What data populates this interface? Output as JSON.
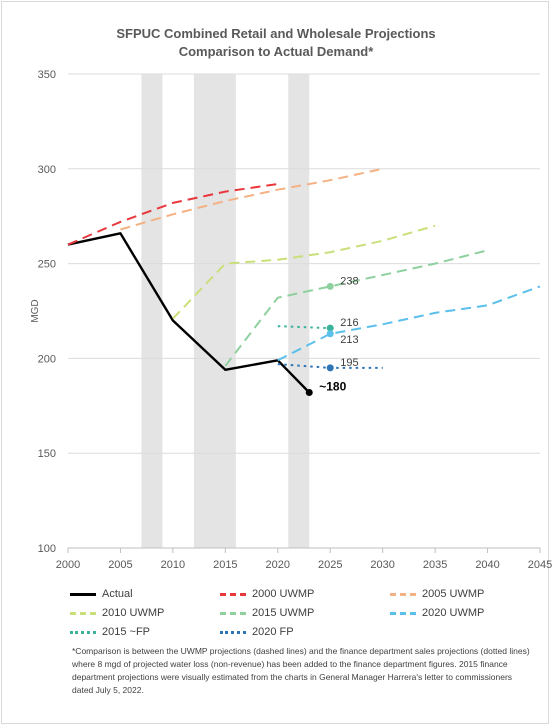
{
  "chart_data": {
    "type": "line",
    "title": "SFPUC Combined Retail and Wholesale Projections",
    "subtitle": "Comparison to Actual Demand*",
    "xlabel": "",
    "ylabel": "MGD",
    "xlim": [
      2000,
      2045
    ],
    "ylim": [
      100,
      350
    ],
    "x_ticks": [
      "2000",
      "2005",
      "2010",
      "2015",
      "2020",
      "2025",
      "2030",
      "2035",
      "2040",
      "2045"
    ],
    "y_ticks": [
      "100",
      "150",
      "200",
      "250",
      "300",
      "350"
    ],
    "grid": true,
    "shaded_periods": [
      [
        2007,
        2009
      ],
      [
        2012,
        2016
      ],
      [
        2021,
        2023
      ]
    ],
    "series": [
      {
        "name": "Actual",
        "style": "solid",
        "color": "#000000",
        "points": [
          [
            2000,
            260
          ],
          [
            2005,
            266
          ],
          [
            2010,
            220
          ],
          [
            2015,
            194
          ],
          [
            2020,
            199
          ],
          [
            2023,
            182
          ]
        ]
      },
      {
        "name": "2000 UWMP",
        "style": "dash",
        "color": "#e8383d",
        "points": [
          [
            2000,
            260
          ],
          [
            2005,
            272
          ],
          [
            2010,
            282
          ],
          [
            2015,
            288
          ],
          [
            2020,
            292
          ]
        ]
      },
      {
        "name": "2005 UWMP",
        "style": "dash",
        "color": "#f4b183",
        "points": [
          [
            2005,
            268
          ],
          [
            2010,
            276
          ],
          [
            2015,
            283
          ],
          [
            2020,
            289
          ],
          [
            2025,
            294
          ],
          [
            2030,
            300
          ]
        ]
      },
      {
        "name": "2010 UWMP",
        "style": "dash",
        "color": "#c9e07a",
        "points": [
          [
            2010,
            221
          ],
          [
            2015,
            250
          ],
          [
            2020,
            252
          ],
          [
            2025,
            256
          ],
          [
            2030,
            262
          ],
          [
            2035,
            270
          ]
        ]
      },
      {
        "name": "2015 UWMP",
        "style": "dash",
        "color": "#8fd19e",
        "points": [
          [
            2015,
            196
          ],
          [
            2020,
            232
          ],
          [
            2025,
            238
          ],
          [
            2030,
            244
          ],
          [
            2035,
            250
          ],
          [
            2040,
            257
          ]
        ]
      },
      {
        "name": "2020 UWMP",
        "style": "dash",
        "color": "#5bc0eb",
        "points": [
          [
            2020,
            199
          ],
          [
            2025,
            213
          ],
          [
            2030,
            218
          ],
          [
            2035,
            224
          ],
          [
            2040,
            228
          ],
          [
            2045,
            238
          ]
        ]
      },
      {
        "name": "2015 ~FP",
        "style": "dot",
        "color": "#3bb39a",
        "points": [
          [
            2020,
            217
          ],
          [
            2025,
            216
          ]
        ]
      },
      {
        "name": "2020 FP",
        "style": "dot",
        "color": "#2e75b6",
        "points": [
          [
            2020,
            197
          ],
          [
            2025,
            195
          ],
          [
            2030,
            195
          ]
        ]
      }
    ],
    "annotations": [
      {
        "text": "238",
        "x": 2025,
        "y": 238,
        "color": "#404040",
        "marker": "#8fd19e"
      },
      {
        "text": "216",
        "x": 2025,
        "y": 216,
        "color": "#404040",
        "marker": "#3bb39a"
      },
      {
        "text": "213",
        "x": 2025,
        "y": 213,
        "color": "#404040",
        "marker": "#5bc0eb"
      },
      {
        "text": "195",
        "x": 2025,
        "y": 195,
        "color": "#404040",
        "marker": "#2e75b6"
      },
      {
        "text": "~180",
        "x": 2023,
        "y": 182,
        "color": "#000000",
        "marker": "#000000"
      }
    ]
  },
  "legend": {
    "items": [
      {
        "label": "Actual",
        "style": "solid",
        "color": "#000000"
      },
      {
        "label": "2000 UWMP",
        "style": "dash",
        "color": "#e8383d"
      },
      {
        "label": "2005 UWMP",
        "style": "dash",
        "color": "#f4b183"
      },
      {
        "label": "2010 UWMP",
        "style": "dash",
        "color": "#c9e07a"
      },
      {
        "label": "2015 UWMP",
        "style": "dash",
        "color": "#8fd19e"
      },
      {
        "label": "2020 UWMP",
        "style": "dash",
        "color": "#5bc0eb"
      },
      {
        "label": "2015 ~FP",
        "style": "dot",
        "color": "#3bb39a"
      },
      {
        "label": "2020 FP",
        "style": "dot",
        "color": "#2e75b6"
      }
    ]
  },
  "footnote": "*Comparison is between the UWMP projections (dashed lines) and the finance department sales projections (dotted lines) where 8 mgd of projected water loss (non-revenue) has been added to the finance department figures. 2015 finance department projections were visually estimated from the charts in General Manager Harrera's letter to commissioners dated July 5, 2022."
}
